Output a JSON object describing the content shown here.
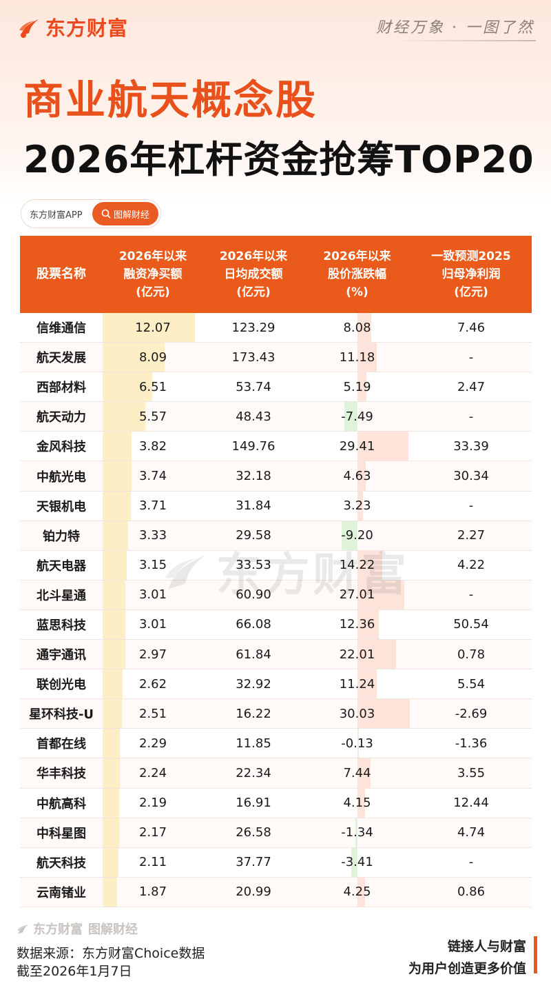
{
  "brand": {
    "name": "东方财富",
    "slogan": "财经万象 · 一图了然"
  },
  "title": {
    "line1": "商业航天概念股",
    "line2": "2026年杠杆资金抢筹TOP20"
  },
  "pill": {
    "app": "东方财富APP",
    "button": "图解财经"
  },
  "colors": {
    "accent": "#ea5a1a",
    "title_orange": "#e8501c",
    "buy_bar": "#fdeec6",
    "up_bar": "#fde3d9",
    "down_bar": "#dff2da"
  },
  "chart_data": {
    "type": "table",
    "columns": [
      "股票名称",
      "2026年以来\n融资净买额\n(亿元)",
      "2026年以来\n日均成交额\n(亿元)",
      "2026年以来\n股价涨跌幅\n(%)",
      "一致预测2025\n归母净利润\n(亿元)"
    ],
    "rows": [
      {
        "name": "信维通信",
        "net_buy": "12.07",
        "turnover": "123.29",
        "change": "8.08",
        "profit": "7.46"
      },
      {
        "name": "航天发展",
        "net_buy": "8.09",
        "turnover": "173.43",
        "change": "11.18",
        "profit": "-"
      },
      {
        "name": "西部材料",
        "net_buy": "6.51",
        "turnover": "53.74",
        "change": "5.19",
        "profit": "2.47"
      },
      {
        "name": "航天动力",
        "net_buy": "5.57",
        "turnover": "48.43",
        "change": "-7.49",
        "profit": "-"
      },
      {
        "name": "金风科技",
        "net_buy": "3.82",
        "turnover": "149.76",
        "change": "29.41",
        "profit": "33.39"
      },
      {
        "name": "中航光电",
        "net_buy": "3.74",
        "turnover": "32.18",
        "change": "4.63",
        "profit": "30.34"
      },
      {
        "name": "天银机电",
        "net_buy": "3.71",
        "turnover": "31.84",
        "change": "3.23",
        "profit": "-"
      },
      {
        "name": "铂力特",
        "net_buy": "3.33",
        "turnover": "29.58",
        "change": "-9.20",
        "profit": "2.27"
      },
      {
        "name": "航天电器",
        "net_buy": "3.15",
        "turnover": "33.53",
        "change": "14.22",
        "profit": "4.22"
      },
      {
        "name": "北斗星通",
        "net_buy": "3.01",
        "turnover": "60.90",
        "change": "27.01",
        "profit": "-"
      },
      {
        "name": "蓝思科技",
        "net_buy": "3.01",
        "turnover": "66.08",
        "change": "12.36",
        "profit": "50.54"
      },
      {
        "name": "通宇通讯",
        "net_buy": "2.97",
        "turnover": "61.84",
        "change": "22.01",
        "profit": "0.78"
      },
      {
        "name": "联创光电",
        "net_buy": "2.62",
        "turnover": "32.92",
        "change": "11.24",
        "profit": "5.54"
      },
      {
        "name": "星环科技-U",
        "net_buy": "2.51",
        "turnover": "16.22",
        "change": "30.03",
        "profit": "-2.69"
      },
      {
        "name": "首都在线",
        "net_buy": "2.29",
        "turnover": "11.85",
        "change": "-0.13",
        "profit": "-1.36"
      },
      {
        "name": "华丰科技",
        "net_buy": "2.24",
        "turnover": "22.34",
        "change": "7.44",
        "profit": "3.55"
      },
      {
        "name": "中航高科",
        "net_buy": "2.19",
        "turnover": "16.91",
        "change": "4.15",
        "profit": "12.44"
      },
      {
        "name": "中科星图",
        "net_buy": "2.17",
        "turnover": "26.58",
        "change": "-1.34",
        "profit": "4.74"
      },
      {
        "name": "航天科技",
        "net_buy": "2.11",
        "turnover": "37.77",
        "change": "-3.41",
        "profit": "-"
      },
      {
        "name": "云南锗业",
        "net_buy": "1.87",
        "turnover": "20.99",
        "change": "4.25",
        "profit": "0.86"
      }
    ]
  },
  "footer": {
    "brand": "东方财富",
    "brand2": "图解财经",
    "source": "数据来源：东方财富Choice数据",
    "date": "截至2026年1月7日",
    "tagline1": "链接人与财富",
    "tagline2": "为用户创造更多价值"
  }
}
